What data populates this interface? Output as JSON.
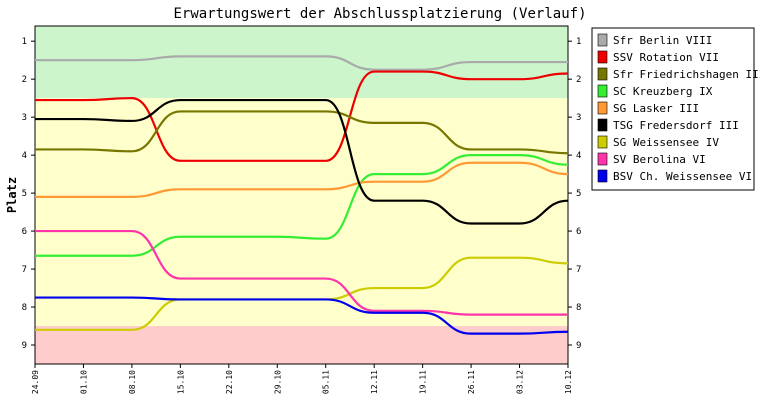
{
  "chart_data": {
    "type": "line",
    "title": "Erwartungswert der Abschlussplatzierung (Verlauf)",
    "ylabel": "Platz",
    "xlabel": "",
    "ylim": [
      0.6,
      9.5
    ],
    "y_inverted": true,
    "y_ticks": [
      "1",
      "2",
      "3",
      "4",
      "5",
      "6",
      "7",
      "8",
      "9"
    ],
    "x": [
      "24.09",
      "01.10",
      "08.10",
      "15.10",
      "22.10",
      "29.10",
      "05.11",
      "12.11",
      "19.11",
      "26.11",
      "03.12",
      "10.12"
    ],
    "bands": [
      {
        "from": 0.6,
        "to": 2.5,
        "color": "#ccf5cc"
      },
      {
        "from": 2.5,
        "to": 8.5,
        "color": "#ffffcc"
      },
      {
        "from": 8.5,
        "to": 9.5,
        "color": "#ffcccc"
      }
    ],
    "legend_position": "right",
    "series": [
      {
        "name": "Sfr Berlin VIII",
        "color": "#aaaaaa",
        "values": [
          1.5,
          1.5,
          1.5,
          1.4,
          1.4,
          1.4,
          1.4,
          1.75,
          1.75,
          1.55,
          1.55,
          1.55
        ]
      },
      {
        "name": "SSV Rotation VII",
        "color": "#ee0000",
        "values": [
          2.55,
          2.55,
          2.5,
          4.15,
          4.15,
          4.15,
          4.15,
          1.8,
          1.8,
          2.0,
          2.0,
          1.85
        ]
      },
      {
        "name": "Sfr Friedrichshagen III",
        "color": "#777700",
        "values": [
          3.85,
          3.85,
          3.9,
          2.85,
          2.85,
          2.85,
          2.85,
          3.15,
          3.15,
          3.85,
          3.85,
          3.95
        ]
      },
      {
        "name": "SC Kreuzberg IX",
        "color": "#33ee33",
        "values": [
          6.65,
          6.65,
          6.65,
          6.15,
          6.15,
          6.15,
          6.2,
          4.5,
          4.5,
          4.0,
          4.0,
          4.25
        ]
      },
      {
        "name": "SG Lasker III",
        "color": "#ff9933",
        "values": [
          5.1,
          5.1,
          5.1,
          4.9,
          4.9,
          4.9,
          4.9,
          4.7,
          4.7,
          4.2,
          4.2,
          4.5
        ]
      },
      {
        "name": "TSG Fredersdorf III",
        "color": "#000000",
        "values": [
          3.05,
          3.05,
          3.1,
          2.55,
          2.55,
          2.55,
          2.55,
          5.2,
          5.2,
          5.8,
          5.8,
          5.2
        ]
      },
      {
        "name": "SG Weissensee IV",
        "color": "#cccc00",
        "values": [
          8.6,
          8.6,
          8.6,
          7.8,
          7.8,
          7.8,
          7.8,
          7.5,
          7.5,
          6.7,
          6.7,
          6.85
        ]
      },
      {
        "name": "SV Berolina VI",
        "color": "#ff33aa",
        "values": [
          6.0,
          6.0,
          6.0,
          7.25,
          7.25,
          7.25,
          7.25,
          8.1,
          8.1,
          8.2,
          8.2,
          8.2
        ]
      },
      {
        "name": "BSV Ch. Weissensee VI",
        "color": "#0000ee",
        "values": [
          7.75,
          7.75,
          7.75,
          7.8,
          7.8,
          7.8,
          7.8,
          8.15,
          8.15,
          8.7,
          8.7,
          8.65
        ]
      }
    ]
  }
}
